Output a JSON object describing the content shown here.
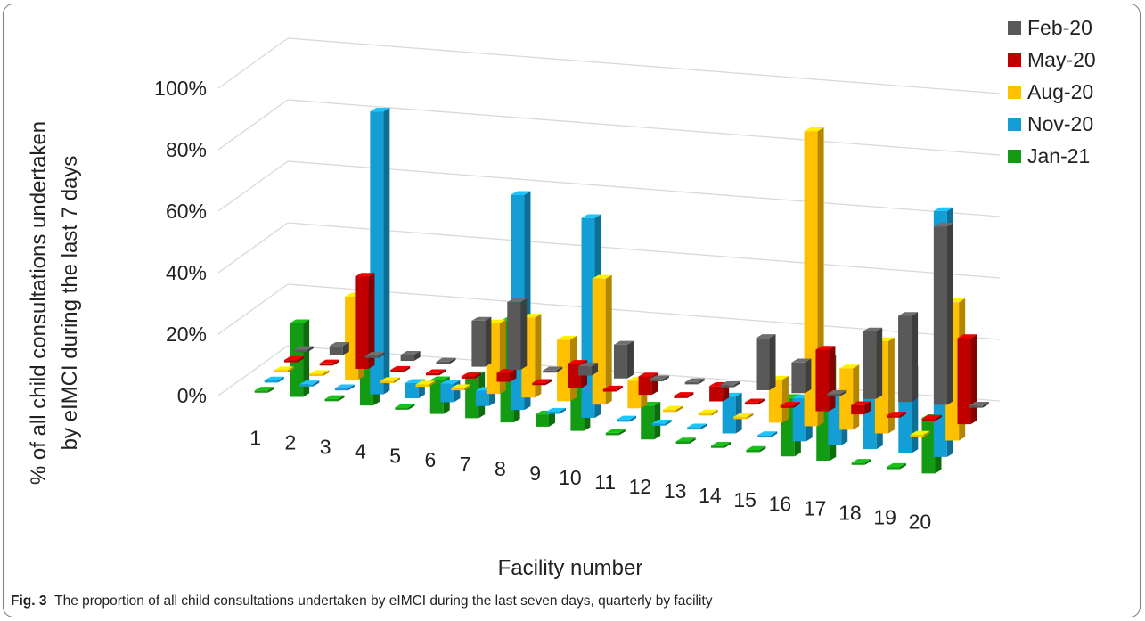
{
  "chart_data": {
    "type": "bar",
    "ylabel_line1": "% of all child consultations undertaken",
    "ylabel_line2": "by eIMCI during the last 7 days",
    "xlabel": "Facility number",
    "y_ticks": [
      "0%",
      "20%",
      "40%",
      "60%",
      "80%",
      "100%"
    ],
    "ylim": [
      0,
      100
    ],
    "legend_position": "top-right",
    "categories": [
      "1",
      "2",
      "3",
      "4",
      "5",
      "6",
      "7",
      "8",
      "9",
      "10",
      "11",
      "12",
      "13",
      "14",
      "15",
      "16",
      "17",
      "18",
      "19",
      "20"
    ],
    "series": [
      {
        "name": "Jan-21",
        "color": "#139b13",
        "values": [
          0,
          24,
          0,
          36,
          0,
          11,
          14,
          33,
          4,
          19,
          0,
          11,
          0,
          0,
          0,
          19,
          33,
          0,
          0,
          18
        ]
      },
      {
        "name": "Nov-20",
        "color": "#149ed6",
        "values": [
          0,
          0,
          0,
          92,
          5,
          6,
          5,
          70,
          0,
          65,
          0,
          0,
          0,
          12,
          0,
          14,
          16,
          31,
          27,
          80
        ]
      },
      {
        "name": "Aug-20",
        "color": "#ffc000",
        "values": [
          0,
          0,
          27,
          0,
          0,
          0,
          23,
          26,
          20,
          41,
          9,
          0,
          0,
          0,
          14,
          96,
          20,
          30,
          0,
          45
        ]
      },
      {
        "name": "May-20",
        "color": "#c00000",
        "values": [
          0,
          0,
          30,
          0,
          0,
          0,
          3,
          0,
          8,
          0,
          6,
          0,
          5,
          0,
          0,
          20,
          3,
          0,
          0,
          28
        ]
      },
      {
        "name": "Feb-20",
        "color": "#595959",
        "values": [
          0,
          3,
          0,
          2,
          0,
          15,
          22,
          0,
          3,
          11,
          0,
          0,
          0,
          17,
          10,
          0,
          22,
          28,
          58,
          0
        ]
      }
    ],
    "legend_order": [
      "Feb-20",
      "May-20",
      "Aug-20",
      "Nov-20",
      "Jan-21"
    ]
  },
  "caption": {
    "label": "Fig. 3",
    "text": "The proportion of all child consultations undertaken by eIMCI during the last seven days, quarterly by facility"
  }
}
